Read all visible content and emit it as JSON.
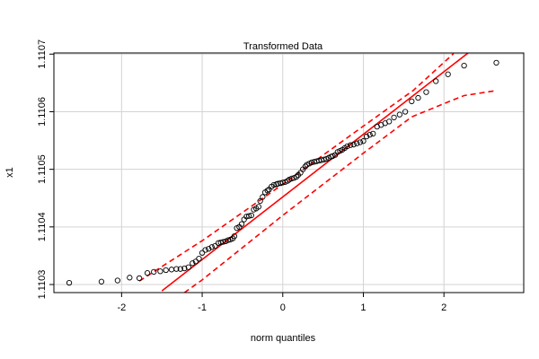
{
  "chart_data": {
    "type": "scatter",
    "title": "Transformed Data",
    "xlabel": "norm quantiles",
    "ylabel": "x1",
    "xlim": [
      -2.84,
      2.99
    ],
    "ylim": [
      1.110286,
      1.110702
    ],
    "xticks": [
      -2,
      -1,
      0,
      1,
      2
    ],
    "yticks": [
      1.1103,
      1.1104,
      1.1105,
      1.1106,
      1.1107
    ],
    "grid": true,
    "points": {
      "color": "#000000",
      "x": [
        -2.65,
        -2.25,
        -2.05,
        -1.9,
        -1.78,
        -1.68,
        -1.6,
        -1.52,
        -1.45,
        -1.38,
        -1.32,
        -1.27,
        -1.22,
        -1.17,
        -1.12,
        -1.08,
        -1.04,
        -1.0,
        -0.96,
        -0.92,
        -0.88,
        -0.84,
        -0.8,
        -0.77,
        -0.74,
        -0.71,
        -0.68,
        -0.65,
        -0.62,
        -0.6,
        -0.57,
        -0.54,
        -0.51,
        -0.48,
        -0.45,
        -0.42,
        -0.39,
        -0.36,
        -0.33,
        -0.3,
        -0.28,
        -0.25,
        -0.22,
        -0.19,
        -0.17,
        -0.14,
        -0.11,
        -0.08,
        -0.06,
        -0.03,
        0,
        0.03,
        0.06,
        0.08,
        0.11,
        0.14,
        0.17,
        0.19,
        0.22,
        0.25,
        0.28,
        0.3,
        0.33,
        0.36,
        0.39,
        0.42,
        0.45,
        0.48,
        0.51,
        0.54,
        0.57,
        0.6,
        0.62,
        0.65,
        0.68,
        0.71,
        0.74,
        0.77,
        0.8,
        0.84,
        0.88,
        0.92,
        0.96,
        1.0,
        1.04,
        1.08,
        1.12,
        1.17,
        1.22,
        1.27,
        1.32,
        1.38,
        1.45,
        1.52,
        1.6,
        1.68,
        1.78,
        1.9,
        2.05,
        2.25,
        2.65
      ],
      "y": [
        1.110303,
        1.110305,
        1.110307,
        1.110312,
        1.110311,
        1.11032,
        1.110322,
        1.110323,
        1.110325,
        1.110326,
        1.110327,
        1.110327,
        1.110328,
        1.11033,
        1.110337,
        1.11034,
        1.110345,
        1.110355,
        1.11036,
        1.110362,
        1.110365,
        1.110367,
        1.110372,
        1.110373,
        1.110374,
        1.110375,
        1.110377,
        1.110378,
        1.11038,
        1.110384,
        1.110398,
        1.1104,
        1.110405,
        1.110413,
        1.110418,
        1.110419,
        1.11042,
        1.11043,
        1.110432,
        1.110435,
        1.110445,
        1.110452,
        1.11046,
        1.110463,
        1.110465,
        1.11047,
        1.110473,
        1.110474,
        1.110475,
        1.110476,
        1.110477,
        1.110478,
        1.11048,
        1.110482,
        1.110484,
        1.110485,
        1.110487,
        1.11049,
        1.110494,
        1.1105,
        1.110505,
        1.110508,
        1.11051,
        1.110512,
        1.110513,
        1.110514,
        1.110515,
        1.110516,
        1.110517,
        1.110518,
        1.11052,
        1.110522,
        1.110523,
        1.110525,
        1.11053,
        1.110532,
        1.110534,
        1.110537,
        1.11054,
        1.110542,
        1.110543,
        1.110545,
        1.110547,
        1.110549,
        1.110557,
        1.11056,
        1.110562,
        1.110574,
        1.110577,
        1.11058,
        1.110583,
        1.11059,
        1.110595,
        1.1106,
        1.110618,
        1.110624,
        1.110634,
        1.110653,
        1.110665,
        1.11068,
        1.110685
      ]
    },
    "lines": [
      {
        "color": "#ff0000",
        "dashed": false,
        "x": [
          -1.5,
          2.3
        ],
        "y": [
          1.110289,
          1.110702
        ]
      },
      {
        "color": "#ff0000",
        "dashed": true,
        "x": [
          -1.78,
          -1,
          0,
          1,
          1.62,
          2.12
        ],
        "y": [
          1.110306,
          1.110376,
          1.110474,
          1.110575,
          1.110637,
          1.110701
        ]
      },
      {
        "color": "#ff0000",
        "dashed": true,
        "x": [
          -1.22,
          -1,
          0,
          1,
          1.6,
          2,
          2.25,
          2.62
        ],
        "y": [
          1.110286,
          1.110308,
          1.11042,
          1.110528,
          1.110591,
          1.110614,
          1.110628,
          1.110636
        ]
      }
    ]
  }
}
